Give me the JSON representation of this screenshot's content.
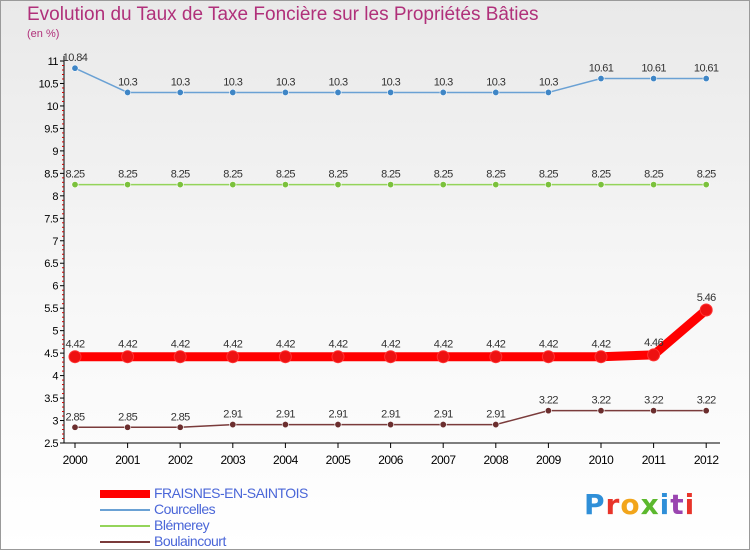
{
  "title": "Evolution du Taux de Taxe Foncière sur les Propriétés Bâties",
  "unit_label": "(en %)",
  "brand": {
    "text": "Proxiti",
    "letters": [
      {
        "ch": "P",
        "color": "#2f8fd8"
      },
      {
        "ch": "r",
        "color": "#e8342a"
      },
      {
        "ch": "o",
        "color": "#f2a51b"
      },
      {
        "ch": "x",
        "color": "#5cb82e"
      },
      {
        "ch": "i",
        "color": "#2f8fd8"
      },
      {
        "ch": "t",
        "color": "#9a45b0"
      },
      {
        "ch": "i",
        "color": "#e8342a"
      }
    ]
  },
  "colors": {
    "axis": "#000000",
    "tick_text": "#000000",
    "tick_red": "#cc0000"
  },
  "chart_data": {
    "type": "line",
    "title": "Evolution du Taux de Taxe Foncière sur les Propriétés Bâties",
    "ylabel": "(en %)",
    "xlabel": "",
    "ylim": [
      2.5,
      11
    ],
    "yticks": [
      "2.5",
      "3",
      "3.5",
      "4",
      "4.5",
      "5",
      "5.5",
      "6",
      "6.5",
      "7",
      "7.5",
      "8",
      "8.5",
      "9",
      "9.5",
      "10",
      "10.5",
      "11"
    ],
    "x": [
      "2000",
      "2001",
      "2002",
      "2003",
      "2004",
      "2005",
      "2006",
      "2007",
      "2008",
      "2009",
      "2010",
      "2011",
      "2012"
    ],
    "grid": false,
    "legend_position": "bottom-left",
    "series": [
      {
        "name": "Courcelles",
        "color": "#6aa1d4",
        "marker_color": "#3f86c6",
        "values": [
          10.84,
          10.3,
          10.3,
          10.3,
          10.3,
          10.3,
          10.3,
          10.3,
          10.3,
          10.3,
          10.61,
          10.61,
          10.61
        ],
        "labels": [
          "10.84",
          "10.3",
          "10.3",
          "10.3",
          "10.3",
          "10.3",
          "10.3",
          "10.3",
          "10.3",
          "10.3",
          "10.61",
          "10.61",
          "10.61"
        ]
      },
      {
        "name": "Blémerey",
        "color": "#94d45a",
        "marker_color": "#7bc13c",
        "values": [
          8.25,
          8.25,
          8.25,
          8.25,
          8.25,
          8.25,
          8.25,
          8.25,
          8.25,
          8.25,
          8.25,
          8.25,
          8.25
        ],
        "labels": [
          "8.25",
          "8.25",
          "8.25",
          "8.25",
          "8.25",
          "8.25",
          "8.25",
          "8.25",
          "8.25",
          "8.25",
          "8.25",
          "8.25",
          "8.25"
        ]
      },
      {
        "name": "FRAISNES-EN-SAINTOIS",
        "color": "#ff0000",
        "marker_color": "#ee1111",
        "values": [
          4.42,
          4.42,
          4.42,
          4.42,
          4.42,
          4.42,
          4.42,
          4.42,
          4.42,
          4.42,
          4.42,
          4.46,
          5.46
        ],
        "labels": [
          "4.42",
          "4.42",
          "4.42",
          "4.42",
          "4.42",
          "4.42",
          "4.42",
          "4.42",
          "4.42",
          "4.42",
          "4.42",
          "4.46",
          "5.46"
        ]
      },
      {
        "name": "Boulaincourt",
        "color": "#7a3b3b",
        "marker_color": "#6b2e2e",
        "values": [
          2.85,
          2.85,
          2.85,
          2.91,
          2.91,
          2.91,
          2.91,
          2.91,
          2.91,
          3.22,
          3.22,
          3.22,
          3.22
        ],
        "labels": [
          "2.85",
          "2.85",
          "2.85",
          "2.91",
          "2.91",
          "2.91",
          "2.91",
          "2.91",
          "2.91",
          "3.22",
          "3.22",
          "3.22",
          "3.22"
        ]
      }
    ],
    "legend": [
      {
        "name": "FRAISNES-EN-SAINTOIS",
        "color": "#ff0000",
        "weight": "thick"
      },
      {
        "name": "Courcelles",
        "color": "#6aa1d4",
        "weight": "thin"
      },
      {
        "name": "Blémerey",
        "color": "#94d45a",
        "weight": "thin"
      },
      {
        "name": "Boulaincourt",
        "color": "#7a3b3b",
        "weight": "thin"
      }
    ]
  }
}
